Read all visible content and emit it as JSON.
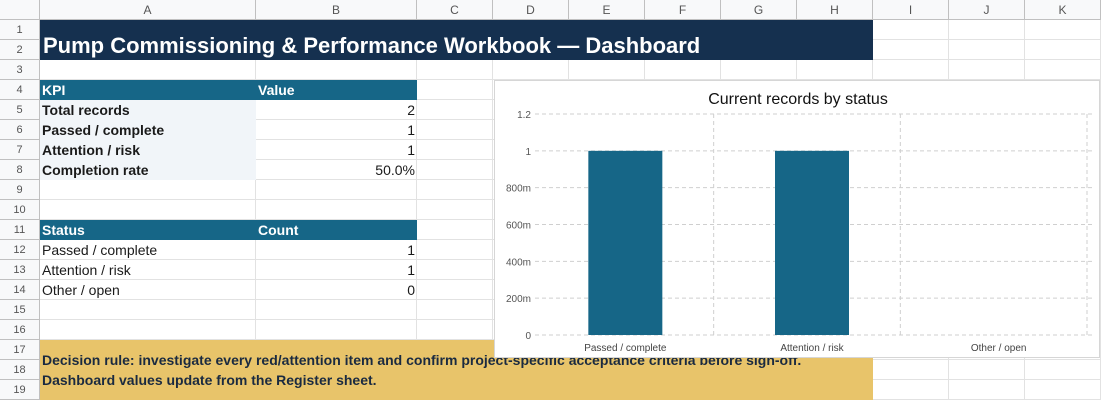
{
  "columns": [
    "A",
    "B",
    "C",
    "D",
    "E",
    "F",
    "G",
    "H",
    "I",
    "J",
    "K"
  ],
  "rows": [
    "1",
    "2",
    "3",
    "4",
    "5",
    "6",
    "7",
    "8",
    "9",
    "10",
    "11",
    "12",
    "13",
    "14",
    "15",
    "16",
    "17",
    "18",
    "19"
  ],
  "title": "Pump Commissioning & Performance Workbook — Dashboard",
  "kpi_table": {
    "header": [
      "KPI",
      "Value"
    ],
    "rows": [
      {
        "label": "Total records",
        "value": "2"
      },
      {
        "label": "Passed / complete",
        "value": "1"
      },
      {
        "label": "Attention / risk",
        "value": "1"
      },
      {
        "label": "Completion rate",
        "value": "50.0%"
      }
    ]
  },
  "status_table": {
    "header": [
      "Status",
      "Count"
    ],
    "rows": [
      {
        "label": "Passed / complete",
        "value": "1"
      },
      {
        "label": "Attention / risk",
        "value": "1"
      },
      {
        "label": "Other / open",
        "value": "0"
      }
    ]
  },
  "note": {
    "line1": "Decision rule: investigate every red/attention item and confirm project-specific acceptance criteria before sign-off.",
    "line2": "Dashboard values update from the Register sheet."
  },
  "colors": {
    "title_band": "#15304f",
    "table_header": "#166687",
    "bar": "#166687",
    "note_band": "#e8c46a"
  },
  "chart_data": {
    "type": "bar",
    "title": "Current records by status",
    "categories": [
      "Passed / complete",
      "Attention / risk",
      "Other / open"
    ],
    "values": [
      1,
      1,
      0
    ],
    "ylim": [
      0,
      1.2
    ],
    "yticks": [
      0,
      0.2,
      0.4,
      0.6,
      0.8,
      1,
      1.2
    ],
    "ytick_labels": [
      "0",
      "200m",
      "400m",
      "600m",
      "800m",
      "1",
      "1.2"
    ],
    "grid": true
  }
}
